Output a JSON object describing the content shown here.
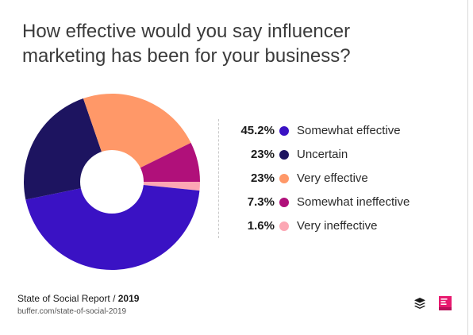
{
  "title_lines": [
    "How effective would you say influencer",
    "marketing has been for your business?"
  ],
  "chart_data": {
    "type": "pie",
    "title": "How effective would you say influencer marketing has been for your business?",
    "slices": [
      {
        "label": "Somewhat effective",
        "value": 45.2,
        "display": "45.2%",
        "color": "#3a12c4"
      },
      {
        "label": "Uncertain",
        "value": 23,
        "display": "23%",
        "color": "#1d1460"
      },
      {
        "label": "Very effective",
        "value": 23,
        "display": "23%",
        "color": "#ff9868"
      },
      {
        "label": "Somewhat ineffective",
        "value": 7.3,
        "display": "7.3%",
        "color": "#b0107a"
      },
      {
        "label": "Very ineffective",
        "value": 1.6,
        "display": "1.6%",
        "color": "#fca7b4"
      }
    ],
    "legend_position": "right"
  },
  "footer": {
    "report_name": "State of Social Report /",
    "report_year": "2019",
    "url": "buffer.com/state-of-social-2019"
  },
  "logos": {
    "buffer": {
      "icon": "buffer-logo-icon",
      "color": "#1a1a1a"
    },
    "social": {
      "icon": "state-of-social-logo-icon",
      "color": "#e8196f"
    }
  }
}
